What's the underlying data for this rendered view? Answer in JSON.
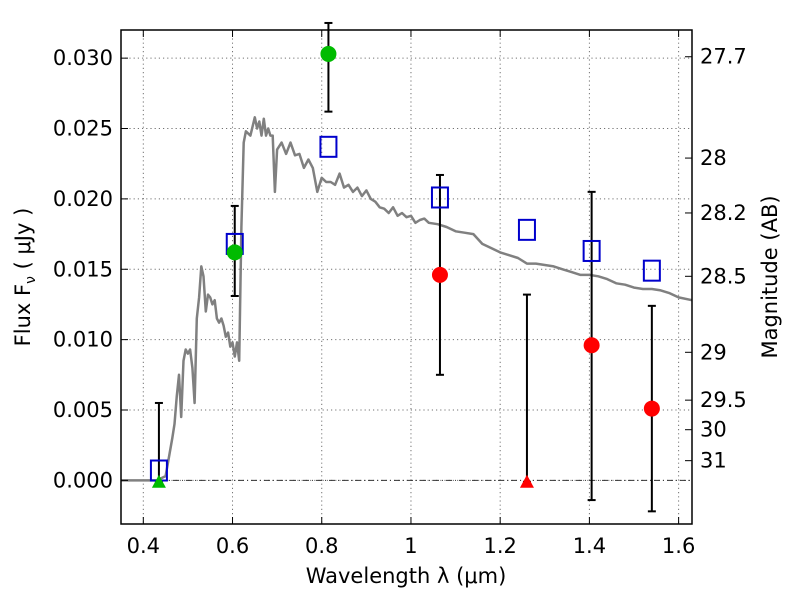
{
  "chart_data": {
    "type": "scatter",
    "xlabel": "Wavelength  λ (μm)",
    "ylabel": "Flux  F",
    "ylabel_sub": "ν",
    "ylabel_unit": "  ( μJy )",
    "y2label": "Magnitude (AB)",
    "xlim": [
      0.35,
      1.63
    ],
    "ylim": [
      -0.0031,
      0.032
    ],
    "grid": true,
    "x_ticks": [
      "0.4",
      "0.6",
      "0.8",
      "1",
      "1.2",
      "1.4",
      "1.6"
    ],
    "x_tick_values": [
      0.4,
      0.6,
      0.8,
      1.0,
      1.2,
      1.4,
      1.6
    ],
    "y_ticks": [
      "0.000",
      "0.005",
      "0.010",
      "0.015",
      "0.020",
      "0.025",
      "0.030"
    ],
    "y_tick_values": [
      0,
      0.005,
      0.01,
      0.015,
      0.02,
      0.025,
      0.03
    ],
    "y2_ticks": [
      {
        "label": "27.7",
        "flux": 0.0301
      },
      {
        "label": "28",
        "flux": 0.0229
      },
      {
        "label": "28.2",
        "flux": 0.019
      },
      {
        "label": "28.5",
        "flux": 0.0145
      },
      {
        "label": "29",
        "flux": 0.0091
      },
      {
        "label": "29.5",
        "flux": 0.0057
      },
      {
        "label": "30",
        "flux": 0.0036
      },
      {
        "label": "31",
        "flux": 0.0014
      }
    ],
    "colors": {
      "model": "#808080",
      "model_photometry": "#0000cc",
      "detection": "#00bb00",
      "measurement": "#ff0000",
      "errorbar": "#000000"
    },
    "series": [
      {
        "kind": "line",
        "color": "model",
        "x": [
          0.35,
          0.43,
          0.45,
          0.465,
          0.47,
          0.475,
          0.48,
          0.485,
          0.49,
          0.495,
          0.5,
          0.505,
          0.51,
          0.515,
          0.52,
          0.525,
          0.53,
          0.535,
          0.54,
          0.545,
          0.55,
          0.555,
          0.56,
          0.565,
          0.57,
          0.575,
          0.58,
          0.585,
          0.59,
          0.595,
          0.6,
          0.605,
          0.61,
          0.615,
          0.62,
          0.625,
          0.63,
          0.64,
          0.65,
          0.655,
          0.66,
          0.665,
          0.67,
          0.675,
          0.68,
          0.685,
          0.69,
          0.695,
          0.7,
          0.71,
          0.72,
          0.73,
          0.74,
          0.75,
          0.76,
          0.77,
          0.78,
          0.79,
          0.8,
          0.81,
          0.82,
          0.83,
          0.84,
          0.85,
          0.86,
          0.87,
          0.88,
          0.89,
          0.9,
          0.91,
          0.92,
          0.93,
          0.94,
          0.95,
          0.96,
          0.97,
          0.98,
          0.99,
          1.0,
          1.01,
          1.02,
          1.03,
          1.04,
          1.06,
          1.08,
          1.1,
          1.12,
          1.14,
          1.16,
          1.18,
          1.2,
          1.22,
          1.24,
          1.26,
          1.28,
          1.3,
          1.32,
          1.34,
          1.36,
          1.38,
          1.4,
          1.42,
          1.44,
          1.46,
          1.48,
          1.5,
          1.52,
          1.54,
          1.56,
          1.58,
          1.6,
          1.63
        ],
        "y": [
          0.0,
          0.0,
          0.0003,
          0.003,
          0.004,
          0.006,
          0.0075,
          0.0045,
          0.0085,
          0.0093,
          0.009,
          0.0093,
          0.008,
          0.0055,
          0.0115,
          0.013,
          0.0152,
          0.0145,
          0.012,
          0.0132,
          0.013,
          0.0125,
          0.0128,
          0.0115,
          0.0112,
          0.0115,
          0.011,
          0.0102,
          0.0105,
          0.0095,
          0.0098,
          0.0088,
          0.0098,
          0.0085,
          0.018,
          0.024,
          0.0248,
          0.0245,
          0.0258,
          0.025,
          0.0255,
          0.0245,
          0.0257,
          0.0245,
          0.025,
          0.0245,
          0.0245,
          0.0205,
          0.0235,
          0.024,
          0.0232,
          0.024,
          0.0231,
          0.0232,
          0.0222,
          0.0228,
          0.0222,
          0.0205,
          0.0215,
          0.0212,
          0.0212,
          0.021,
          0.0218,
          0.0208,
          0.021,
          0.0205,
          0.0208,
          0.0202,
          0.0206,
          0.02,
          0.0198,
          0.0194,
          0.0193,
          0.019,
          0.0194,
          0.0188,
          0.019,
          0.0187,
          0.0188,
          0.0183,
          0.0185,
          0.0186,
          0.0183,
          0.0182,
          0.018,
          0.0177,
          0.0176,
          0.0175,
          0.0168,
          0.0165,
          0.0162,
          0.016,
          0.0158,
          0.0154,
          0.0154,
          0.0153,
          0.0152,
          0.015,
          0.0148,
          0.0146,
          0.0146,
          0.0145,
          0.0143,
          0.014,
          0.0139,
          0.0137,
          0.0136,
          0.0136,
          0.0135,
          0.0133,
          0.013,
          0.0128
        ]
      },
      {
        "kind": "markers",
        "name": "",
        "marker": "open-square",
        "color": "model_photometry",
        "x": [
          0.435,
          0.605,
          0.815,
          1.065,
          1.26,
          1.405,
          1.54
        ],
        "y": [
          0.0007,
          0.0168,
          0.0237,
          0.0201,
          0.0178,
          0.0163,
          0.0149
        ]
      },
      {
        "kind": "markers",
        "marker": "filled-circle",
        "color": "detection",
        "x": [
          0.605,
          0.815
        ],
        "y": [
          0.0162,
          0.0303
        ],
        "err_low": [
          0.0131,
          0.0262
        ],
        "err_high": [
          0.0195,
          0.0325
        ]
      },
      {
        "kind": "markers",
        "marker": "filled-triangle",
        "color": "detection",
        "x": [
          0.435
        ],
        "y": [
          -0.0001
        ],
        "err_low": [
          -0.0001
        ],
        "err_high": [
          0.0055
        ]
      },
      {
        "kind": "markers",
        "marker": "filled-circle",
        "color": "measurement",
        "x": [
          1.065,
          1.405,
          1.54
        ],
        "y": [
          0.0146,
          0.0096,
          0.0051
        ],
        "err_low": [
          0.0075,
          -0.0014,
          -0.0022
        ],
        "err_high": [
          0.0217,
          0.0205,
          0.0124
        ]
      },
      {
        "kind": "markers",
        "marker": "filled-triangle",
        "color": "measurement",
        "x": [
          1.26
        ],
        "y": [
          -0.0001
        ],
        "err_low": [
          -0.0001
        ],
        "err_high": [
          0.0132
        ]
      }
    ]
  }
}
